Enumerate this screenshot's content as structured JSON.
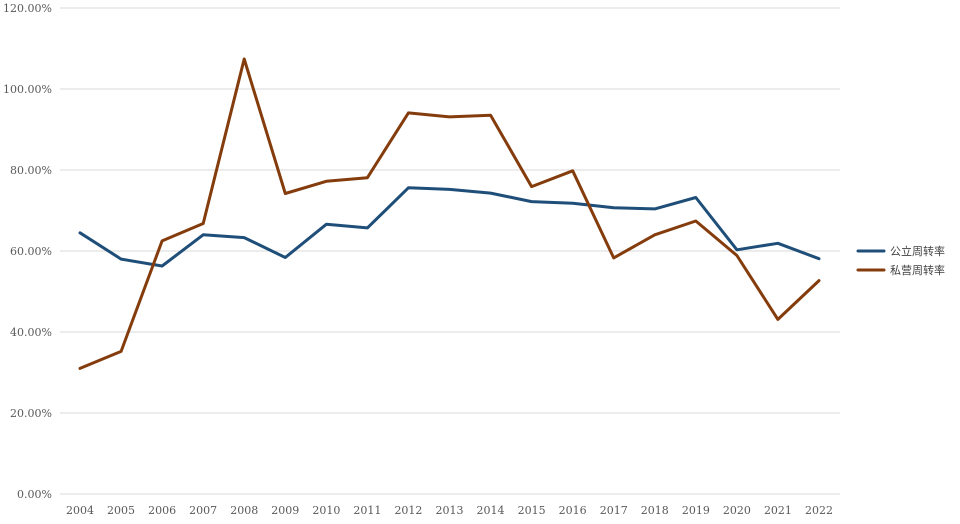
{
  "chart_data": {
    "type": "line",
    "title": "",
    "xlabel": "",
    "ylabel": "",
    "categories": [
      "2004",
      "2005",
      "2006",
      "2007",
      "2008",
      "2009",
      "2010",
      "2011",
      "2012",
      "2013",
      "2014",
      "2015",
      "2016",
      "2017",
      "2018",
      "2019",
      "2020",
      "2021",
      "2022"
    ],
    "ylim": [
      0,
      120
    ],
    "yticks": [
      0,
      20,
      40,
      60,
      80,
      100,
      120
    ],
    "ytick_labels": [
      "0.00%",
      "20.00%",
      "40.00%",
      "60.00%",
      "80.00%",
      "100.00%",
      "120.00%"
    ],
    "grid": true,
    "legend": "right",
    "series": [
      {
        "name": "公立周转率",
        "color": "#1f4e79",
        "values": [
          64.5,
          58.0,
          56.3,
          64.0,
          63.3,
          58.4,
          66.6,
          65.7,
          75.6,
          75.2,
          74.3,
          72.2,
          71.8,
          70.7,
          70.4,
          73.2,
          60.3,
          61.9,
          58.1
        ]
      },
      {
        "name": "私营周转率",
        "color": "#843c0c",
        "values": [
          31.0,
          35.2,
          62.5,
          66.8,
          107.4,
          74.2,
          77.2,
          78.1,
          94.1,
          93.1,
          93.5,
          75.9,
          79.8,
          58.3,
          64.0,
          67.4,
          58.9,
          43.1,
          52.7
        ]
      }
    ]
  }
}
